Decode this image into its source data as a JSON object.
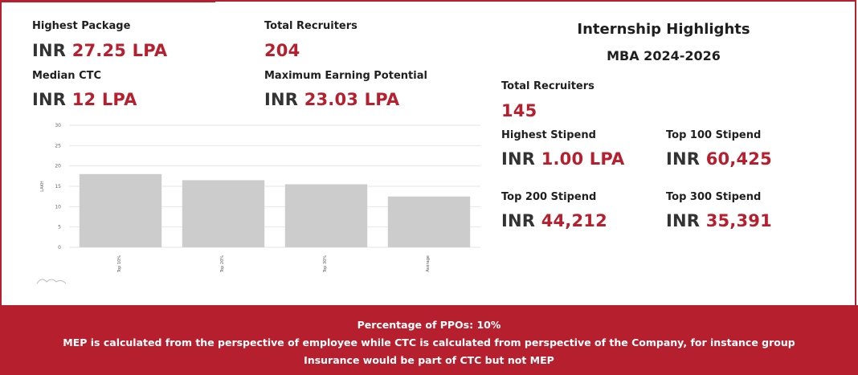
{
  "placement": {
    "highest_package": {
      "label": "Highest Package",
      "prefix": "INR",
      "value": "27.25 LPA"
    },
    "total_recruiters": {
      "label": "Total Recruiters",
      "prefix": "",
      "value": "204"
    },
    "median_ctc": {
      "label": "Median CTC",
      "prefix": "INR",
      "value": "12 LPA"
    },
    "max_earning": {
      "label": "Maximum Earning Potential",
      "prefix": "INR",
      "value": "23.03 LPA"
    }
  },
  "internship": {
    "title": "Internship Highlights",
    "subtitle": "MBA 2024-2026",
    "total_recruiters": {
      "label": "Total Recruiters",
      "value": "145"
    },
    "highest_stipend": {
      "label": "Highest Stipend",
      "prefix": "INR",
      "value": "1.00 LPA"
    },
    "top100_stipend": {
      "label": "Top 100 Stipend",
      "prefix": "INR",
      "value": "60,425"
    },
    "top200_stipend": {
      "label": "Top 200 Stipend",
      "prefix": "INR",
      "value": "44,212"
    },
    "top300_stipend": {
      "label": "Top 300 Stipend",
      "prefix": "INR",
      "value": "35,391"
    }
  },
  "chart_data": {
    "type": "bar",
    "categories": [
      "Top 10%",
      "Top 20%",
      "Top 30%",
      "Average"
    ],
    "values": [
      18,
      16.5,
      15.5,
      12.5
    ],
    "ylabel": "LAKH",
    "xlabel": "",
    "ylim": [
      0,
      30
    ],
    "yticks": [
      0,
      5,
      10,
      15,
      20,
      25,
      30
    ],
    "grid": true,
    "bar_color": "#cccccc"
  },
  "footer": {
    "line1": "Percentage of PPOs: 10%",
    "line2": "MEP is calculated from the perspective of employee while CTC is calculated from perspective of the Company, for instance group",
    "line3": "Insurance would be part of CTC but not MEP"
  },
  "colors": {
    "accent": "#b51f2e",
    "bar": "#cccccc"
  }
}
